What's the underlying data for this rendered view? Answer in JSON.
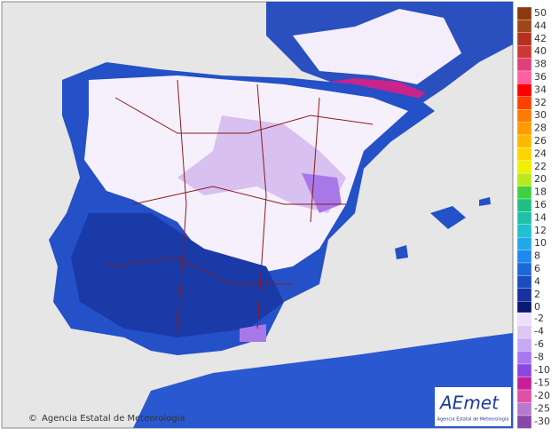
{
  "map": {
    "credit": "Agencia Estatal de Meteorología",
    "logo": {
      "name": "AEmet",
      "subtitle": "Agencia Estatal de Meteorología"
    },
    "legend": [
      {
        "label": 50,
        "color": "#8b3a0f"
      },
      {
        "label": 44,
        "color": "#a0451a"
      },
      {
        "label": 42,
        "color": "#b83020"
      },
      {
        "label": 40,
        "color": "#d03838"
      },
      {
        "label": 38,
        "color": "#e0407a"
      },
      {
        "label": 36,
        "color": "#ff5fa0"
      },
      {
        "label": 34,
        "color": "#ff0000"
      },
      {
        "label": 32,
        "color": "#ff4000"
      },
      {
        "label": 30,
        "color": "#ff7a00"
      },
      {
        "label": 28,
        "color": "#ff9a00"
      },
      {
        "label": 26,
        "color": "#ffb800"
      },
      {
        "label": 24,
        "color": "#ffd400"
      },
      {
        "label": 22,
        "color": "#f0f000"
      },
      {
        "label": 20,
        "color": "#b8e820"
      },
      {
        "label": 18,
        "color": "#40d040"
      },
      {
        "label": 16,
        "color": "#20c080"
      },
      {
        "label": 14,
        "color": "#20c0a8"
      },
      {
        "label": 12,
        "color": "#20c0d0"
      },
      {
        "label": 10,
        "color": "#20a8e8"
      },
      {
        "label": 8,
        "color": "#1e88f0"
      },
      {
        "label": 6,
        "color": "#1c68d8"
      },
      {
        "label": 4,
        "color": "#1a4cc0"
      },
      {
        "label": 2,
        "color": "#1830a0"
      },
      {
        "label": 0,
        "color": "#0a1870"
      },
      {
        "label": -2,
        "color": "#ece0fa"
      },
      {
        "label": -4,
        "color": "#dcc8f4"
      },
      {
        "label": -6,
        "color": "#c8a8f0"
      },
      {
        "label": -8,
        "color": "#a878f0"
      },
      {
        "label": -10,
        "color": "#8a48e0"
      },
      {
        "label": -15,
        "color": "#c81e9a"
      },
      {
        "label": -20,
        "color": "#e050a8"
      },
      {
        "label": -25,
        "color": "#b878d0"
      },
      {
        "label": -30,
        "color": "#8848a8"
      }
    ]
  }
}
